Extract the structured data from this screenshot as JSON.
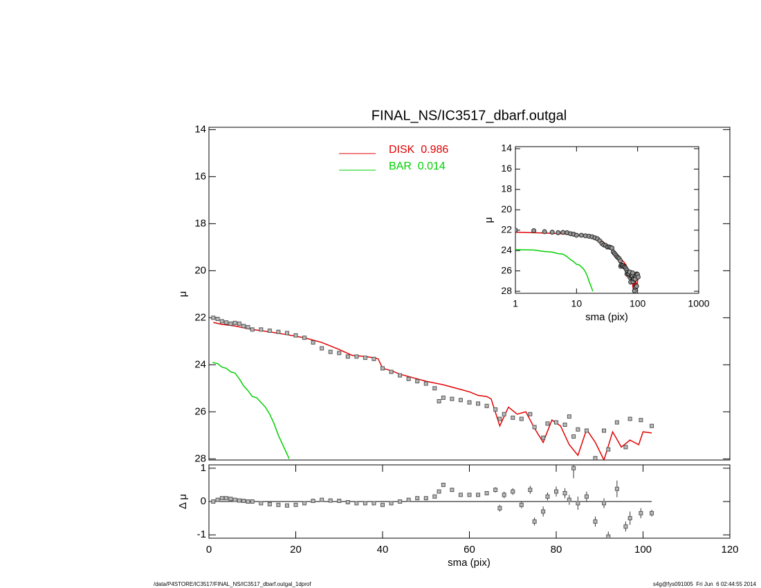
{
  "chart_data": [
    {
      "type": "profile",
      "title": "FINAL_NS/IC3517_dbarf.outgal",
      "ylabel": "μ",
      "xlim": [
        0,
        120
      ],
      "ylim": [
        13.9,
        28.05
      ],
      "yticks": [
        14,
        16,
        18,
        20,
        22,
        24,
        26,
        28
      ],
      "invert_y": true,
      "legend": "top-center",
      "points": {
        "color": "#555555",
        "x": [
          1,
          2,
          3,
          4,
          5,
          6,
          7,
          8,
          9,
          10,
          12,
          14,
          16,
          18,
          20,
          22,
          24,
          26,
          28,
          30,
          32,
          34,
          36,
          38,
          40,
          42,
          44,
          46,
          48,
          50,
          52,
          53,
          54,
          56,
          58,
          60,
          62,
          64,
          66,
          67,
          68,
          70,
          72,
          74,
          75,
          77,
          78,
          80,
          82,
          83,
          84,
          85,
          87,
          89,
          91,
          92,
          94,
          96,
          97,
          99.5,
          102
        ],
        "values": [
          22.0,
          22.05,
          22.15,
          22.2,
          22.25,
          22.22,
          22.25,
          22.35,
          22.4,
          22.5,
          22.5,
          22.55,
          22.6,
          22.65,
          22.75,
          22.85,
          23.05,
          23.3,
          23.45,
          23.5,
          23.65,
          23.65,
          23.7,
          23.75,
          24.15,
          24.3,
          24.45,
          24.6,
          24.7,
          24.8,
          25.0,
          25.55,
          25.4,
          25.45,
          25.5,
          25.6,
          25.65,
          25.75,
          25.9,
          26.3,
          26.1,
          26.25,
          26.3,
          26.1,
          26.65,
          27.1,
          26.5,
          26.45,
          26.55,
          26.2,
          27.05,
          26.75,
          26.8,
          27.97,
          26.8,
          27.6,
          26.45,
          27.5,
          26.3,
          26.35,
          26.6
        ]
      },
      "series": [
        {
          "name": "DISK  0.986",
          "color": "#e00000",
          "x": [
            1,
            3,
            6,
            10,
            14,
            18,
            22,
            26,
            30,
            33,
            36,
            38,
            39,
            40,
            42,
            44,
            46,
            50,
            54,
            58,
            60,
            62,
            64,
            65,
            67,
            69,
            71,
            73,
            75,
            77,
            79,
            81,
            83,
            85,
            87,
            89,
            91,
            93,
            95,
            97,
            99,
            100,
            102
          ],
          "values": [
            22.2,
            22.28,
            22.35,
            22.5,
            22.6,
            22.72,
            22.85,
            23.05,
            23.35,
            23.6,
            23.65,
            23.7,
            23.75,
            24.15,
            24.25,
            24.4,
            24.5,
            24.7,
            24.85,
            25.05,
            25.15,
            25.3,
            25.35,
            25.45,
            26.6,
            25.8,
            26.1,
            26.0,
            26.7,
            27.3,
            26.35,
            26.6,
            27.4,
            27.85,
            26.75,
            27.3,
            28.05,
            26.85,
            27.5,
            27.2,
            27.4,
            26.85,
            26.9
          ]
        },
        {
          "name": "BAR  0.014",
          "color": "#00d000",
          "x": [
            0.8,
            2,
            3,
            4,
            5,
            6,
            7,
            8,
            9,
            10,
            11,
            12,
            13,
            14,
            15,
            16,
            17,
            18,
            18.5
          ],
          "values": [
            23.9,
            23.95,
            24.1,
            24.15,
            24.3,
            24.35,
            24.6,
            24.9,
            25.1,
            25.35,
            25.4,
            25.6,
            25.8,
            26.1,
            26.5,
            27.0,
            27.4,
            27.8,
            28.0
          ]
        }
      ]
    },
    {
      "type": "residual",
      "xlabel": "sma (pix)",
      "ylabel": "Δ μ",
      "xlim": [
        0,
        120
      ],
      "xticks": [
        0,
        20,
        40,
        60,
        80,
        100,
        120
      ],
      "ylim": [
        -1.1,
        1.1
      ],
      "yticks": [
        -1,
        0,
        1
      ],
      "values": [
        0,
        0.05,
        0.1,
        0.1,
        0.08,
        0.05,
        0.03,
        0.02,
        0,
        0,
        -0.05,
        -0.08,
        -0.1,
        -0.12,
        -0.1,
        -0.05,
        0.02,
        0.05,
        0.03,
        0.02,
        -0.02,
        -0.05,
        -0.05,
        -0.05,
        -0.1,
        -0.05,
        0,
        0.05,
        0.1,
        0.1,
        0.15,
        0.3,
        0.5,
        0.35,
        0.2,
        0.2,
        0.2,
        0.25,
        0.35,
        -0.2,
        0.2,
        0.3,
        -0.1,
        0.35,
        -0.6,
        -0.3,
        0.15,
        0.3,
        0.25,
        0.05,
        1.0,
        -0.05,
        0.15,
        -0.6,
        -0.05,
        -1.05,
        0.38,
        -0.75,
        -0.5,
        -0.35,
        -0.35
      ],
      "errors": [
        0.02,
        0.02,
        0.02,
        0.02,
        0.02,
        0.02,
        0.02,
        0.02,
        0.02,
        0.02,
        0.02,
        0.02,
        0.02,
        0.02,
        0.02,
        0.02,
        0.02,
        0.02,
        0.02,
        0.02,
        0.02,
        0.02,
        0.02,
        0.02,
        0.03,
        0.03,
        0.03,
        0.03,
        0.03,
        0.04,
        0.04,
        0.05,
        0.05,
        0.05,
        0.05,
        0.05,
        0.06,
        0.06,
        0.08,
        0.1,
        0.1,
        0.1,
        0.1,
        0.12,
        0.12,
        0.15,
        0.12,
        0.15,
        0.15,
        0.15,
        0.3,
        0.2,
        0.15,
        0.15,
        0.15,
        0.15,
        0.25,
        0.15,
        0.2,
        0.15,
        0.1
      ]
    },
    {
      "type": "log-inset",
      "xlabel": "sma (pix)",
      "ylabel": "μ",
      "log_x": true,
      "xlim": [
        1,
        1000
      ],
      "xticks": [
        1,
        10,
        100,
        1000
      ],
      "ylim": [
        13.8,
        28.2
      ],
      "yticks": [
        14,
        16,
        18,
        20,
        22,
        24,
        26,
        28
      ]
    }
  ],
  "footer": {
    "left": "/data/P4STORE/IC3517/FINAL_NS/IC3517_dbarf.outgal_1dprof",
    "right": "s4g@fys091005  Fri Jun  6 02:44:55 2014"
  }
}
